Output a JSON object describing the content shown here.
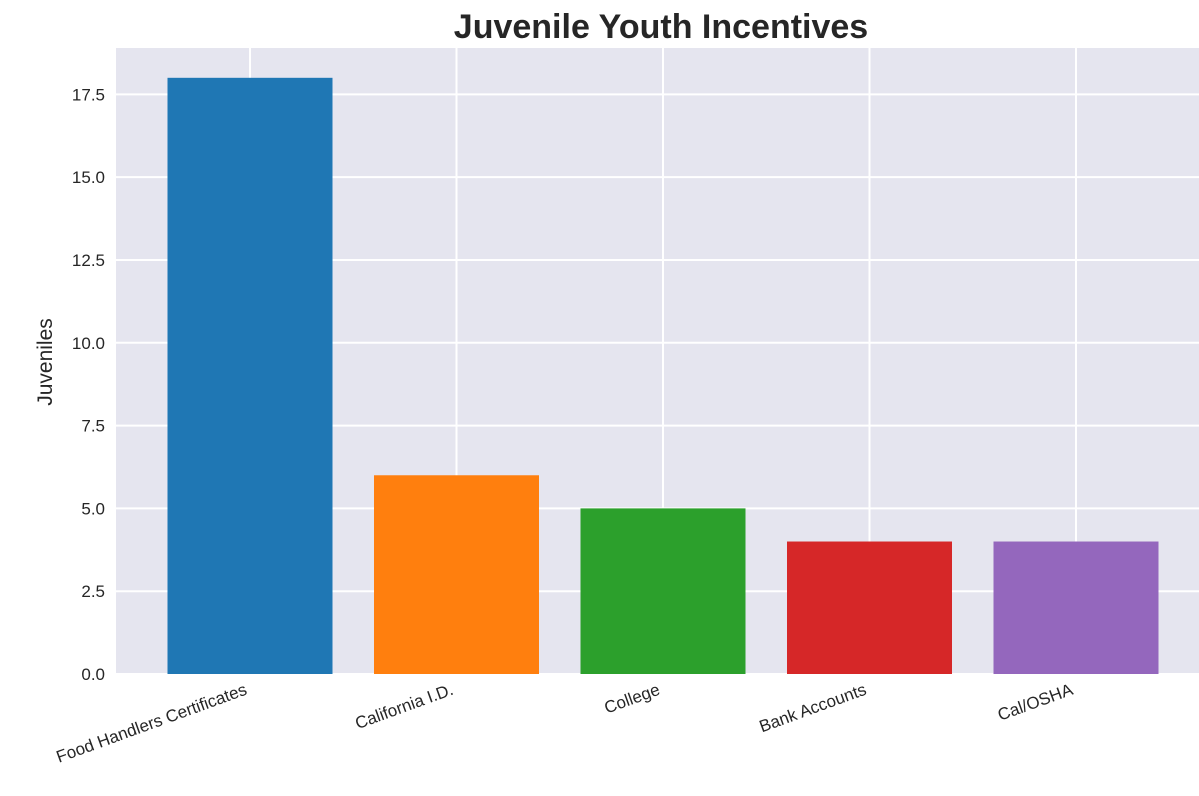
{
  "chart_data": {
    "type": "bar",
    "title": "Juvenile Youth Incentives",
    "xlabel": "",
    "ylabel": "Juveniles",
    "categories": [
      "Food Handlers Certificates",
      "California I.D.",
      "College",
      "Bank Accounts",
      "Cal/OSHA"
    ],
    "values": [
      18,
      6,
      5,
      4,
      4
    ],
    "colors": [
      "#1f77b4",
      "#ff7f0e",
      "#2ca02c",
      "#d62728",
      "#9467bd"
    ],
    "ylim": [
      0,
      18.9
    ],
    "yticks": [
      0.0,
      2.5,
      5.0,
      7.5,
      10.0,
      12.5,
      15.0,
      17.5
    ],
    "ytick_labels": [
      "0.0",
      "2.5",
      "5.0",
      "7.5",
      "10.0",
      "12.5",
      "15.0",
      "17.5"
    ],
    "grid": true,
    "background": "#e5e5ef",
    "legend": "none"
  }
}
